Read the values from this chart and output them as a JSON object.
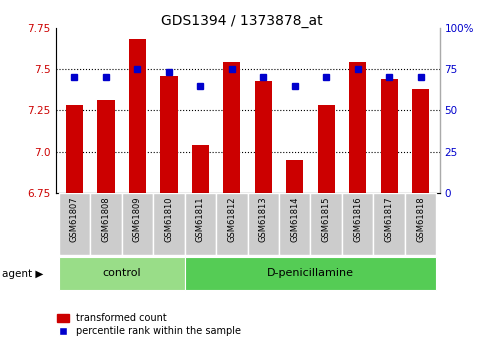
{
  "title": "GDS1394 / 1373878_at",
  "samples": [
    "GSM61807",
    "GSM61808",
    "GSM61809",
    "GSM61810",
    "GSM61811",
    "GSM61812",
    "GSM61813",
    "GSM61814",
    "GSM61815",
    "GSM61816",
    "GSM61817",
    "GSM61818"
  ],
  "bar_values": [
    7.28,
    7.31,
    7.68,
    7.46,
    7.04,
    7.54,
    7.43,
    6.95,
    7.28,
    7.54,
    7.44,
    7.38
  ],
  "percentile_values": [
    70,
    70,
    75,
    73,
    65,
    75,
    70,
    65,
    70,
    75,
    70,
    70
  ],
  "ylim_left": [
    6.75,
    7.75
  ],
  "ylim_right": [
    0,
    100
  ],
  "yticks_left": [
    6.75,
    7.0,
    7.25,
    7.5,
    7.75
  ],
  "yticks_right": [
    0,
    25,
    50,
    75,
    100
  ],
  "ytick_labels_right": [
    "0",
    "25",
    "50",
    "75",
    "100%"
  ],
  "bar_color": "#cc0000",
  "dot_color": "#0000cc",
  "bar_bottom": 6.75,
  "groups": [
    {
      "label": "control",
      "indices": [
        0,
        1,
        2,
        3
      ],
      "color": "#99dd88"
    },
    {
      "label": "D-penicillamine",
      "indices": [
        4,
        5,
        6,
        7,
        8,
        9,
        10,
        11
      ],
      "color": "#55cc55"
    }
  ],
  "agent_label": "agent",
  "legend_bar_label": "transformed count",
  "legend_dot_label": "percentile rank within the sample",
  "title_fontsize": 10,
  "tick_label_color_left": "#cc0000",
  "tick_label_color_right": "#0000cc",
  "sample_box_color": "#cccccc",
  "grid_linestyle": ":",
  "grid_linewidth": 0.8,
  "grid_color": "#000000",
  "bar_width": 0.55
}
